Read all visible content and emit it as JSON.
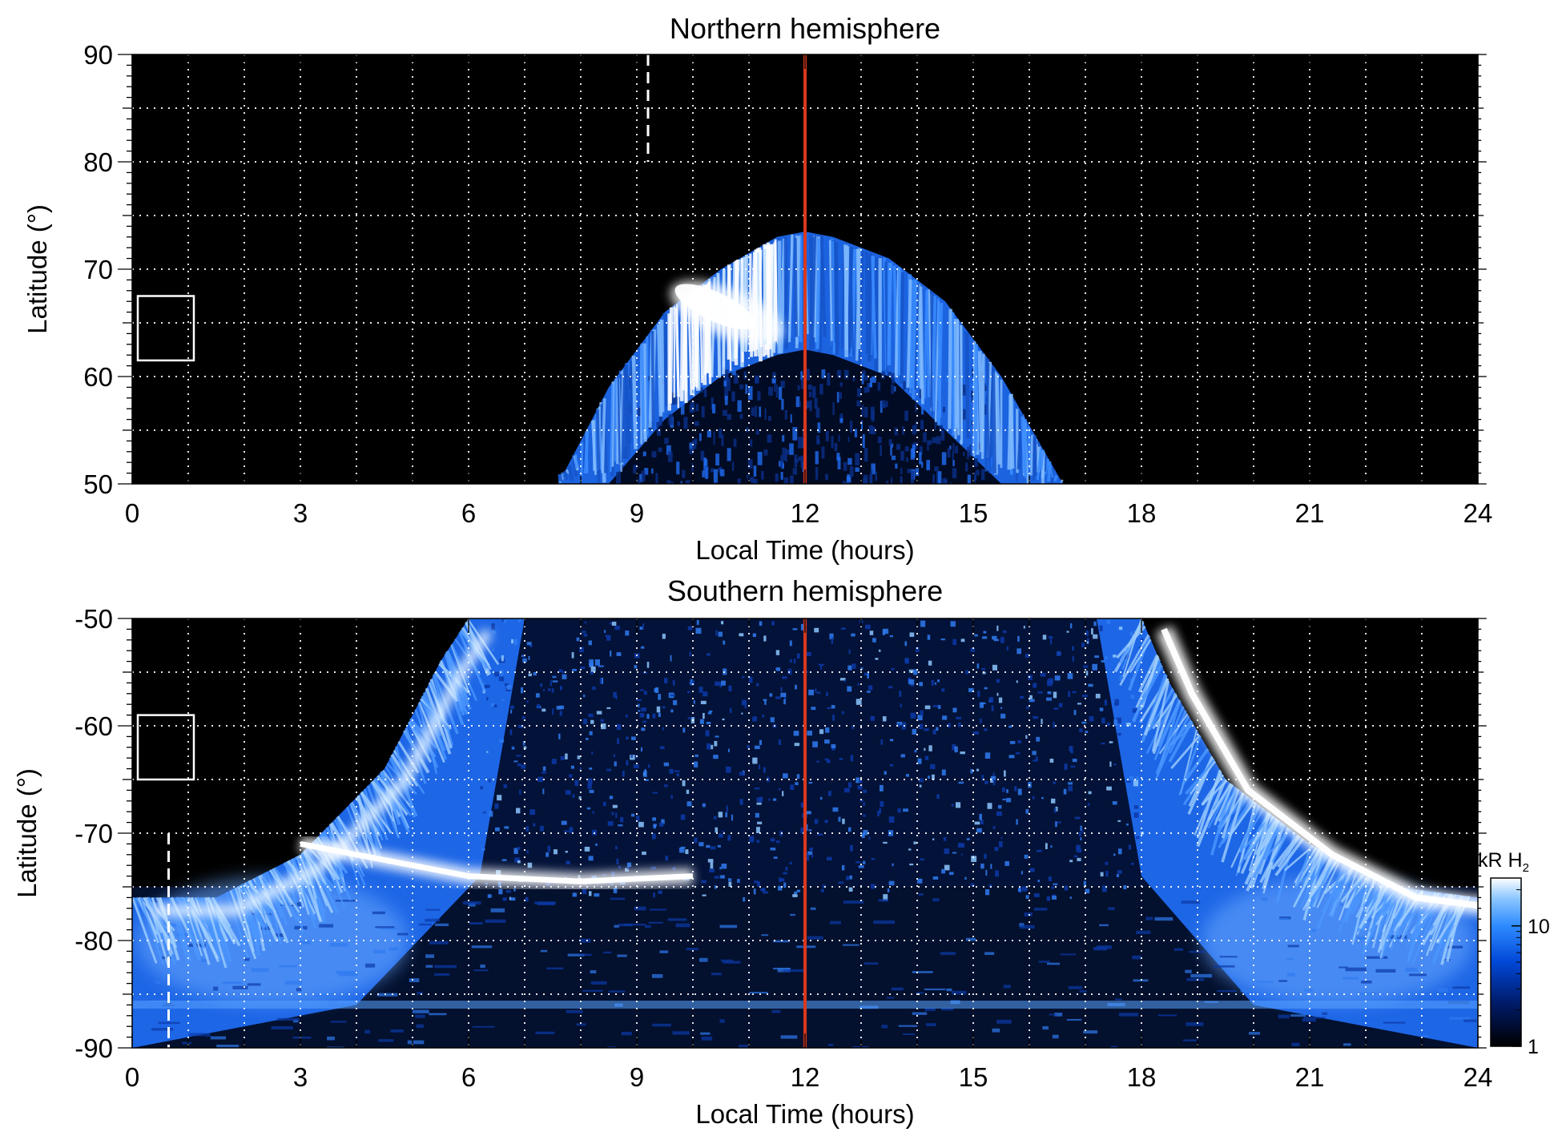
{
  "chart_data": [
    {
      "type": "heatmap",
      "title": "Northern hemisphere",
      "xlabel": "Local Time (hours)",
      "ylabel": "Latitude (°)",
      "xlim": [
        0,
        24
      ],
      "ylim": [
        50,
        90
      ],
      "x_ticks": [
        "0",
        "3",
        "6",
        "9",
        "12",
        "15",
        "18",
        "21",
        "24"
      ],
      "y_ticks": [
        "50",
        "60",
        "70",
        "80",
        "90"
      ],
      "grid": true,
      "background_color": "#000000",
      "colormap": [
        "#000000",
        "#001a66",
        "#0047d6",
        "#2f8cff",
        "#8cc7ff",
        "#ffffff"
      ],
      "aurora_oval": {
        "description_points_lt": [
          7.6,
          8.5,
          9.5,
          10.5,
          11.5,
          12.0,
          12.5,
          13.5,
          14.5,
          15.5,
          16.6
        ],
        "outer_edge_lat": [
          50,
          59,
          66,
          70,
          73,
          73.5,
          73,
          71,
          67,
          60,
          50
        ],
        "inner_edge_lat": [
          null,
          50,
          56,
          60,
          62,
          62.5,
          62,
          60,
          55,
          50,
          null
        ],
        "brightest_lt_range": [
          9.5,
          11.5
        ]
      },
      "noon_line_lt": 12,
      "noon_line_color": "#d9381e",
      "dashed_line": {
        "lt": 9.2,
        "lat_range": [
          80,
          90
        ]
      },
      "box": {
        "lt_range": [
          0.1,
          1.1
        ],
        "lat_range": [
          61.5,
          67.5
        ]
      }
    },
    {
      "type": "heatmap",
      "title": "Southern hemisphere",
      "xlabel": "Local Time (hours)",
      "ylabel": "Latitude (°)",
      "xlim": [
        0,
        24
      ],
      "ylim": [
        -90,
        -50
      ],
      "x_ticks": [
        "0",
        "3",
        "6",
        "9",
        "12",
        "15",
        "18",
        "21",
        "24"
      ],
      "y_ticks": [
        "-50",
        "-60",
        "-70",
        "-80",
        "-90"
      ],
      "grid": true,
      "background_color": "#000000",
      "colormap": [
        "#000000",
        "#001a66",
        "#0047d6",
        "#2f8cff",
        "#8cc7ff",
        "#ffffff"
      ],
      "aurora_band": {
        "dawn_arc_lt": [
          0,
          1.5,
          3,
          4.5,
          5.5,
          6.0
        ],
        "dawn_arc_lat": [
          -76,
          -76,
          -72,
          -64,
          -54,
          -50
        ],
        "dusk_arc_lt": [
          18.0,
          18.5,
          19.5,
          21,
          22.5,
          24
        ],
        "dusk_arc_lat": [
          -50,
          -56,
          -65,
          -71,
          -75,
          -76
        ],
        "bright_streak_lt": [
          3,
          5,
          6,
          8,
          10
        ],
        "bright_streak_lat": [
          -71,
          -73,
          -74,
          -74.5,
          -74
        ]
      },
      "noon_line_lt": 12,
      "noon_line_color": "#d9381e",
      "dashed_line": {
        "lt": 0.65,
        "lat_range": [
          -90,
          -70
        ]
      },
      "box": {
        "lt_range": [
          0.1,
          1.1
        ],
        "lat_range": [
          -65,
          -59
        ]
      },
      "colorbar": {
        "label": "kR H",
        "label_subscript": "2",
        "scale": "log",
        "range": [
          1,
          25
        ],
        "tick_labels": [
          "1",
          "10"
        ]
      }
    }
  ]
}
